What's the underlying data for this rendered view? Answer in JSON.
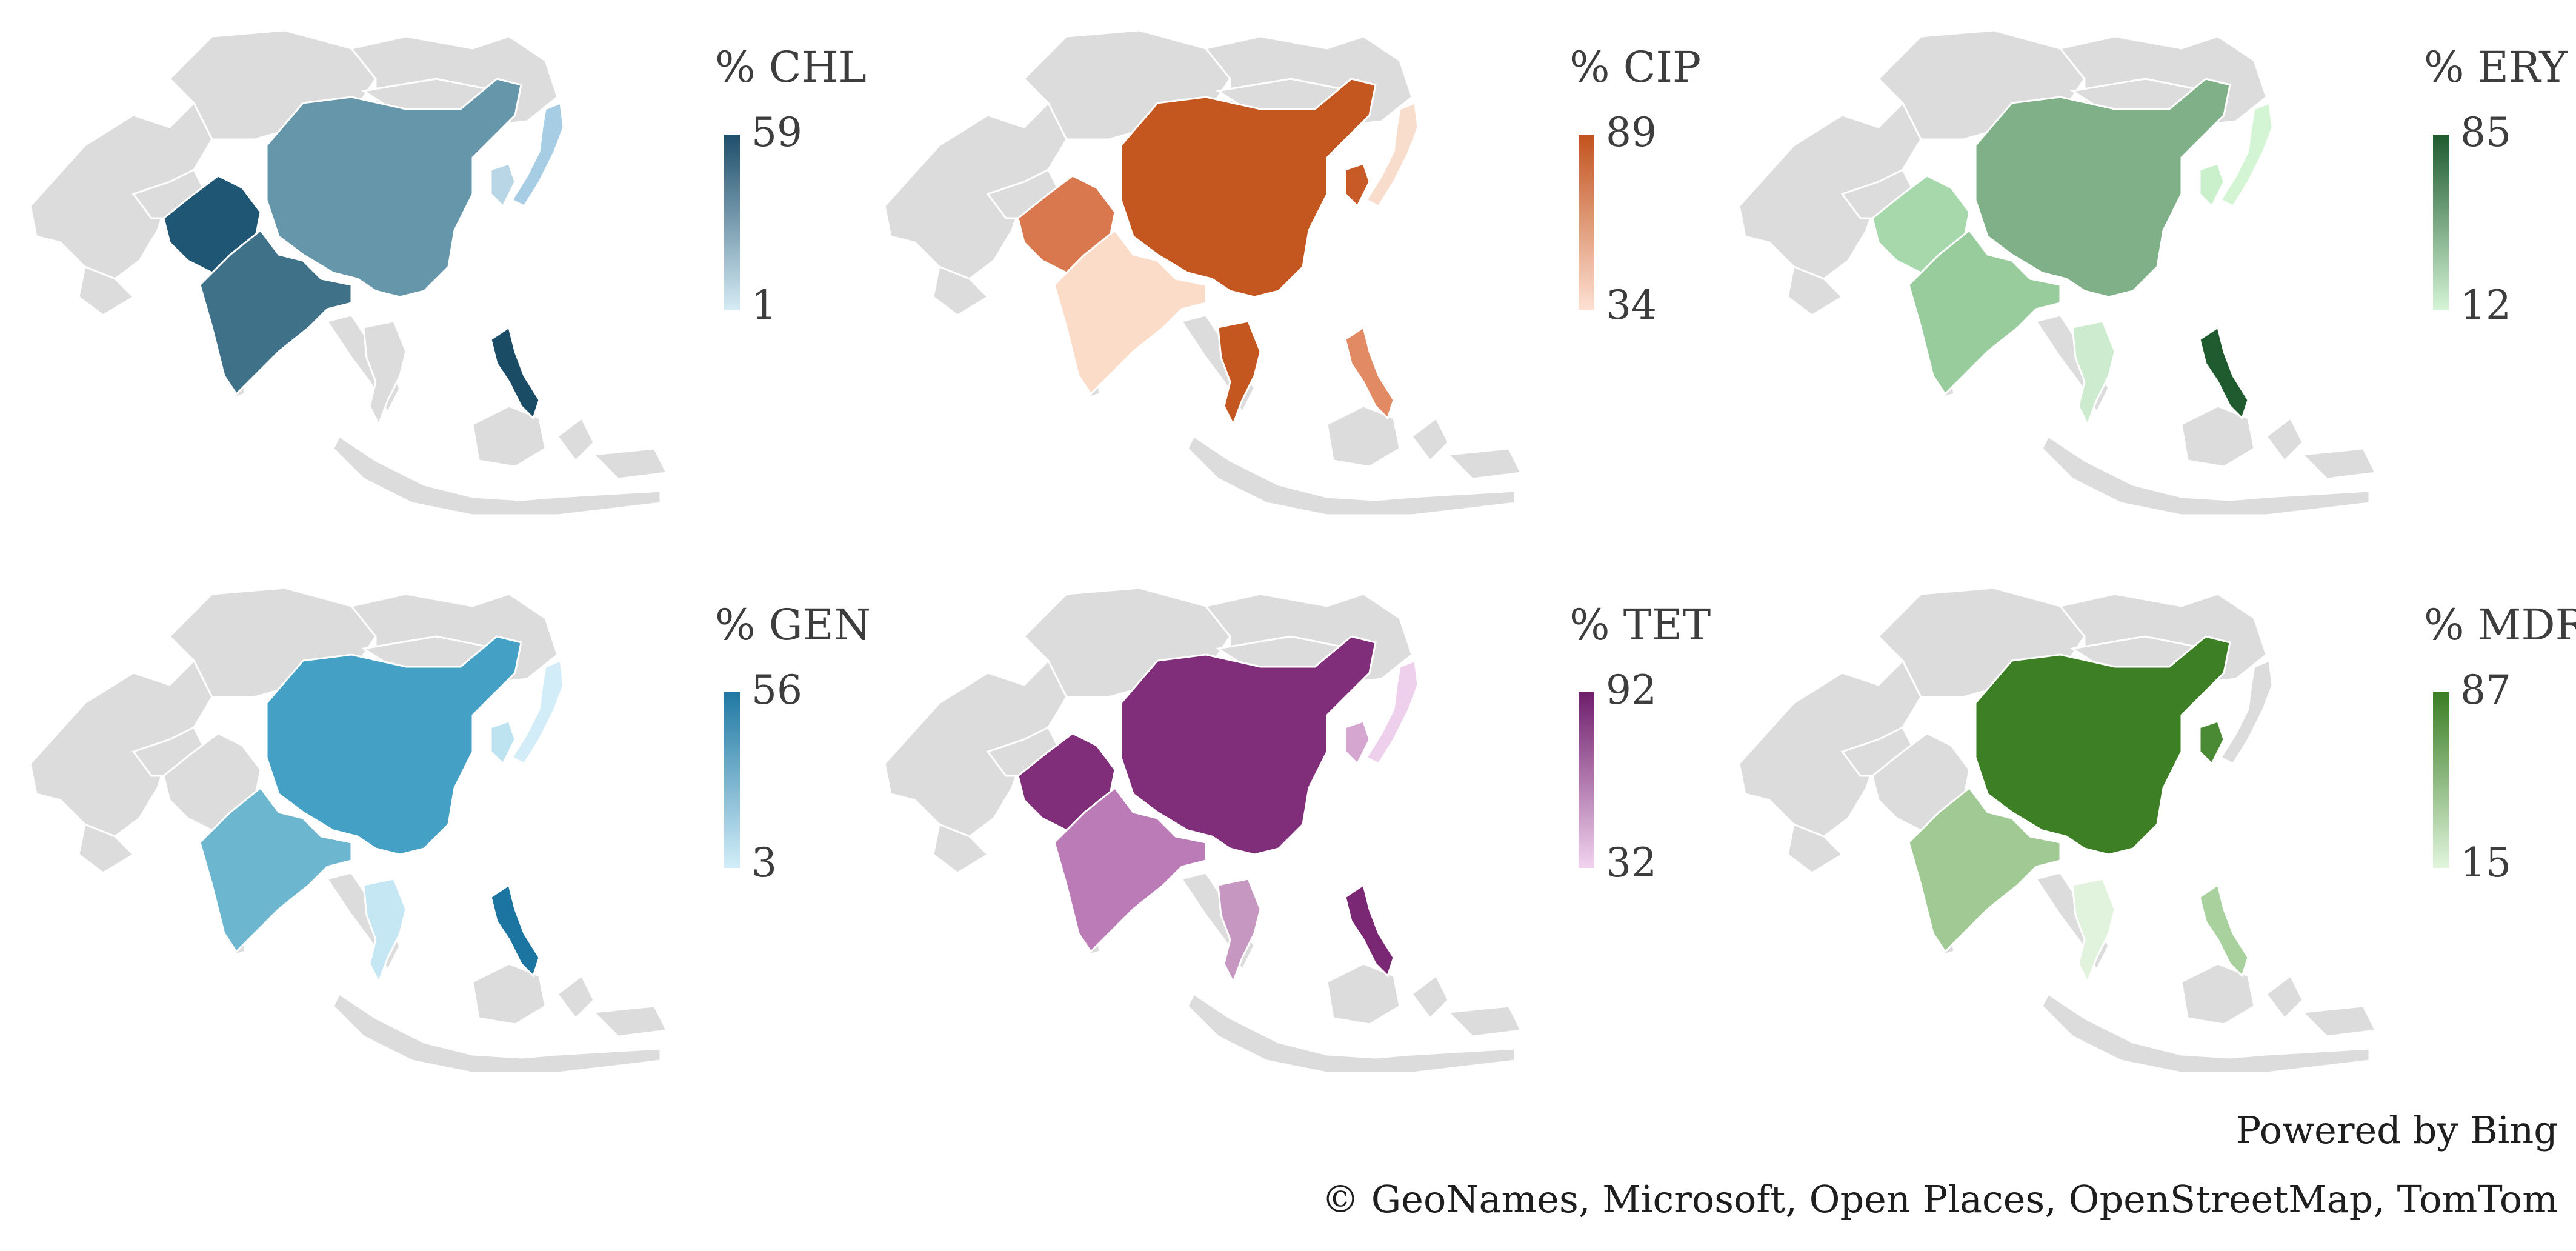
{
  "panels": [
    {
      "title": "% CHL",
      "max": "59",
      "min": "1",
      "high_color": "#1d4e6b",
      "low_color": "#d6ecf5",
      "countries": {
        "pakistan": "#1f5673",
        "india": "#3f7189",
        "china": "#6696aa",
        "korea": "#b9d6e6",
        "japan": "#a7cde4",
        "philippines": "#1b4c66",
        "thailand": "#dcdcdc",
        "myanmar": "#dcdcdc",
        "vietnam": "#dcdcdc"
      }
    },
    {
      "title": "% CIP",
      "max": "89",
      "min": "34",
      "high_color": "#c2521d",
      "low_color": "#fde1d3",
      "countries": {
        "pakistan": "#d9784f",
        "india": "#fbdcc9",
        "china": "#c4561f",
        "korea": "#c75a26",
        "japan": "#f9ddcc",
        "philippines": "#e18a63",
        "thailand": "#c4561f",
        "myanmar": "#dcdcdc",
        "vietnam": "#dcdcdc"
      }
    },
    {
      "title": "% ERY",
      "max": "85",
      "min": "12",
      "high_color": "#1e5a2e",
      "low_color": "#d5f5d6",
      "countries": {
        "pakistan": "#a7d8ac",
        "india": "#98cc9d",
        "china": "#80b087",
        "korea": "#c9f0cb",
        "japan": "#d3f5d4",
        "philippines": "#1f5b2e",
        "thailand": "#cdeccf",
        "myanmar": "#dcdcdc",
        "vietnam": "#dcdcdc"
      }
    },
    {
      "title": "% GEN",
      "max": "56",
      "min": "3",
      "high_color": "#1f78a3",
      "low_color": "#d2eef9",
      "countries": {
        "pakistan": "#dcdcdc",
        "india": "#6db6cf",
        "china": "#44a0c4",
        "korea": "#bde3f1",
        "japan": "#d2ecf8",
        "philippines": "#1c74a1",
        "thailand": "#c5e6f3",
        "myanmar": "#dcdcdc",
        "vietnam": "#dcdcdc"
      }
    },
    {
      "title": "% TET",
      "max": "92",
      "min": "32",
      "high_color": "#6e1e6b",
      "low_color": "#f1d3ef",
      "countries": {
        "pakistan": "#802d7a",
        "india": "#bb7bb6",
        "china": "#812e7a",
        "korea": "#d4a6d0",
        "japan": "#efd0ec",
        "philippines": "#7a2874",
        "thailand": "#c597c1",
        "myanmar": "#dcdcdc",
        "vietnam": "#dcdcdc"
      }
    },
    {
      "title": "% MDR",
      "max": "87",
      "min": "15",
      "high_color": "#3a7d24",
      "low_color": "#e1f5dd",
      "countries": {
        "pakistan": "#dcdcdc",
        "india": "#a1c994",
        "china": "#3c7f24",
        "korea": "#4a8a35",
        "japan": "#dcdcdc",
        "philippines": "#a8d19d",
        "thailand": "#e2f3dd",
        "myanmar": "#dcdcdc",
        "vietnam": "#dcdcdc"
      }
    }
  ],
  "attribution": {
    "powered": "Powered by Bing",
    "copyright": "© GeoNames, Microsoft, Open Places, OpenStreetMap, TomTom"
  }
}
